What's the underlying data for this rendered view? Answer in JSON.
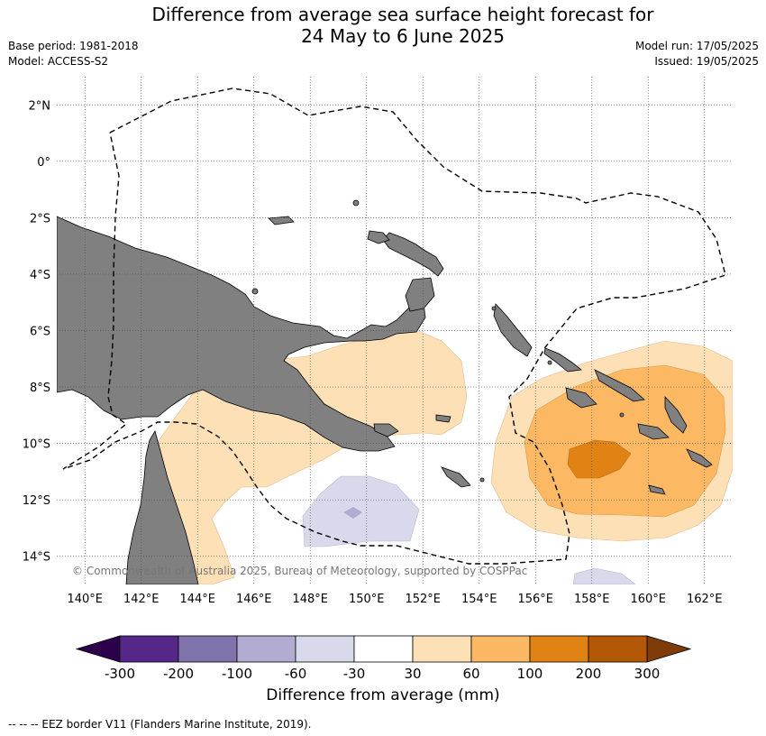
{
  "header": {
    "title_line1": "Difference from average sea surface height forecast for",
    "title_line2": "24 May to 6 June 2025",
    "base_period": "Base period: 1981-2018",
    "model": "Model: ACCESS-S2",
    "model_run": "Model run: 17/05/2025",
    "issued": "Issued: 19/05/2025"
  },
  "map": {
    "lon_range": [
      139,
      163
    ],
    "lat_range": [
      -15,
      3
    ],
    "lat_ticks": [
      {
        "value": 2,
        "label": "2°N"
      },
      {
        "value": 0,
        "label": "0°"
      },
      {
        "value": -2,
        "label": "2°S"
      },
      {
        "value": -4,
        "label": "4°S"
      },
      {
        "value": -6,
        "label": "6°S"
      },
      {
        "value": -8,
        "label": "8°S"
      },
      {
        "value": -10,
        "label": "10°S"
      },
      {
        "value": -12,
        "label": "12°S"
      },
      {
        "value": -14,
        "label": "14°S"
      }
    ],
    "lon_ticks": [
      {
        "value": 140,
        "label": "140°E"
      },
      {
        "value": 142,
        "label": "142°E"
      },
      {
        "value": 144,
        "label": "144°E"
      },
      {
        "value": 146,
        "label": "146°E"
      },
      {
        "value": 148,
        "label": "148°E"
      },
      {
        "value": 150,
        "label": "150°E"
      },
      {
        "value": 152,
        "label": "152°E"
      },
      {
        "value": 154,
        "label": "154°E"
      },
      {
        "value": 156,
        "label": "156°E"
      },
      {
        "value": 158,
        "label": "158°E"
      },
      {
        "value": 160,
        "label": "160°E"
      },
      {
        "value": 162,
        "label": "162°E"
      }
    ],
    "land_color": "#808080",
    "copyright": "© Commonwealth of Australia 2025, Bureau of Meteorology, supported by COSPPac"
  },
  "colorbar": {
    "bins": [
      {
        "color": "#2d004b"
      },
      {
        "color": "#542788"
      },
      {
        "color": "#8073ac"
      },
      {
        "color": "#b2abd2"
      },
      {
        "color": "#d8daeb"
      },
      {
        "color": "#ffffff"
      },
      {
        "color": "#fee0b6"
      },
      {
        "color": "#fdb863"
      },
      {
        "color": "#e08214"
      },
      {
        "color": "#b35806"
      },
      {
        "color": "#7f3b08"
      }
    ],
    "tick_labels": [
      "-300",
      "-200",
      "-100",
      "-60",
      "-30",
      "30",
      "60",
      "100",
      "200",
      "300"
    ],
    "label": "Difference from average (mm)"
  },
  "footer": {
    "legend": "-- -- -- EEZ border V11 (Flanders Marine Institute, 2019)."
  }
}
